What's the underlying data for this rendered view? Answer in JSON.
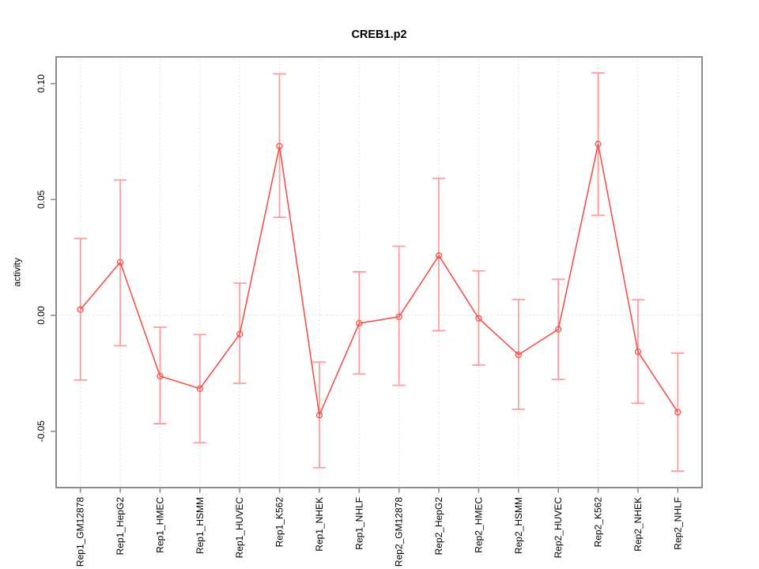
{
  "chart_data": {
    "type": "line",
    "title": "CREB1.p2",
    "xlabel": "",
    "ylabel": "activity",
    "categories": [
      "Rep1_GM12878",
      "Rep1_HepG2",
      "Rep1_HMEC",
      "Rep1_HSMM",
      "Rep1_HUVEC",
      "Rep1_K562",
      "Rep1_NHEK",
      "Rep1_NHLF",
      "Rep2_GM12878",
      "Rep2_HepG2",
      "Rep2_HMEC",
      "Rep2_HSMM",
      "Rep2_HUVEC",
      "Rep2_K562",
      "Rep2_NHEK",
      "Rep2_NHLF"
    ],
    "series": [
      {
        "name": "activity",
        "marker": "open-circle",
        "values": [
          0.0025,
          0.0229,
          -0.0262,
          -0.0316,
          -0.0081,
          0.073,
          -0.043,
          -0.0034,
          -0.0006,
          0.0258,
          -0.0013,
          -0.017,
          -0.006,
          0.0739,
          -0.0157,
          -0.0418
        ],
        "ci_upper": [
          0.0332,
          0.0584,
          -0.0051,
          -0.0083,
          0.0139,
          0.1042,
          -0.0202,
          0.0188,
          0.0298,
          0.0591,
          0.0192,
          0.0068,
          0.0156,
          0.1046,
          0.0067,
          -0.0163
        ],
        "ci_lower": [
          -0.0279,
          -0.0131,
          -0.0467,
          -0.0549,
          -0.0293,
          0.0423,
          -0.0657,
          -0.0253,
          -0.0302,
          -0.0066,
          -0.0214,
          -0.0405,
          -0.0276,
          0.0432,
          -0.0379,
          -0.0672
        ]
      }
    ],
    "ylim": [
      -0.0743,
      0.1115
    ],
    "yticks": [
      {
        "value": -0.05,
        "label": "-0.05"
      },
      {
        "value": 0.0,
        "label": "0.00"
      },
      {
        "value": 0.05,
        "label": "0.05"
      },
      {
        "value": 0.1,
        "label": "0.10"
      }
    ],
    "zero_line": true,
    "grid": {
      "vertical": true,
      "horizontal": false,
      "style": "dotted"
    },
    "legend": "none",
    "colors": {
      "line": "#f4514d",
      "marker": "#f4514d",
      "error_bar": "#ff9d9d",
      "grid": "#d9d9d9",
      "zero_line": "#d9d9d9",
      "box": "#8c8c8c",
      "tick": "#8c8c8c",
      "text": "#000000",
      "background": "#ffffff"
    }
  }
}
